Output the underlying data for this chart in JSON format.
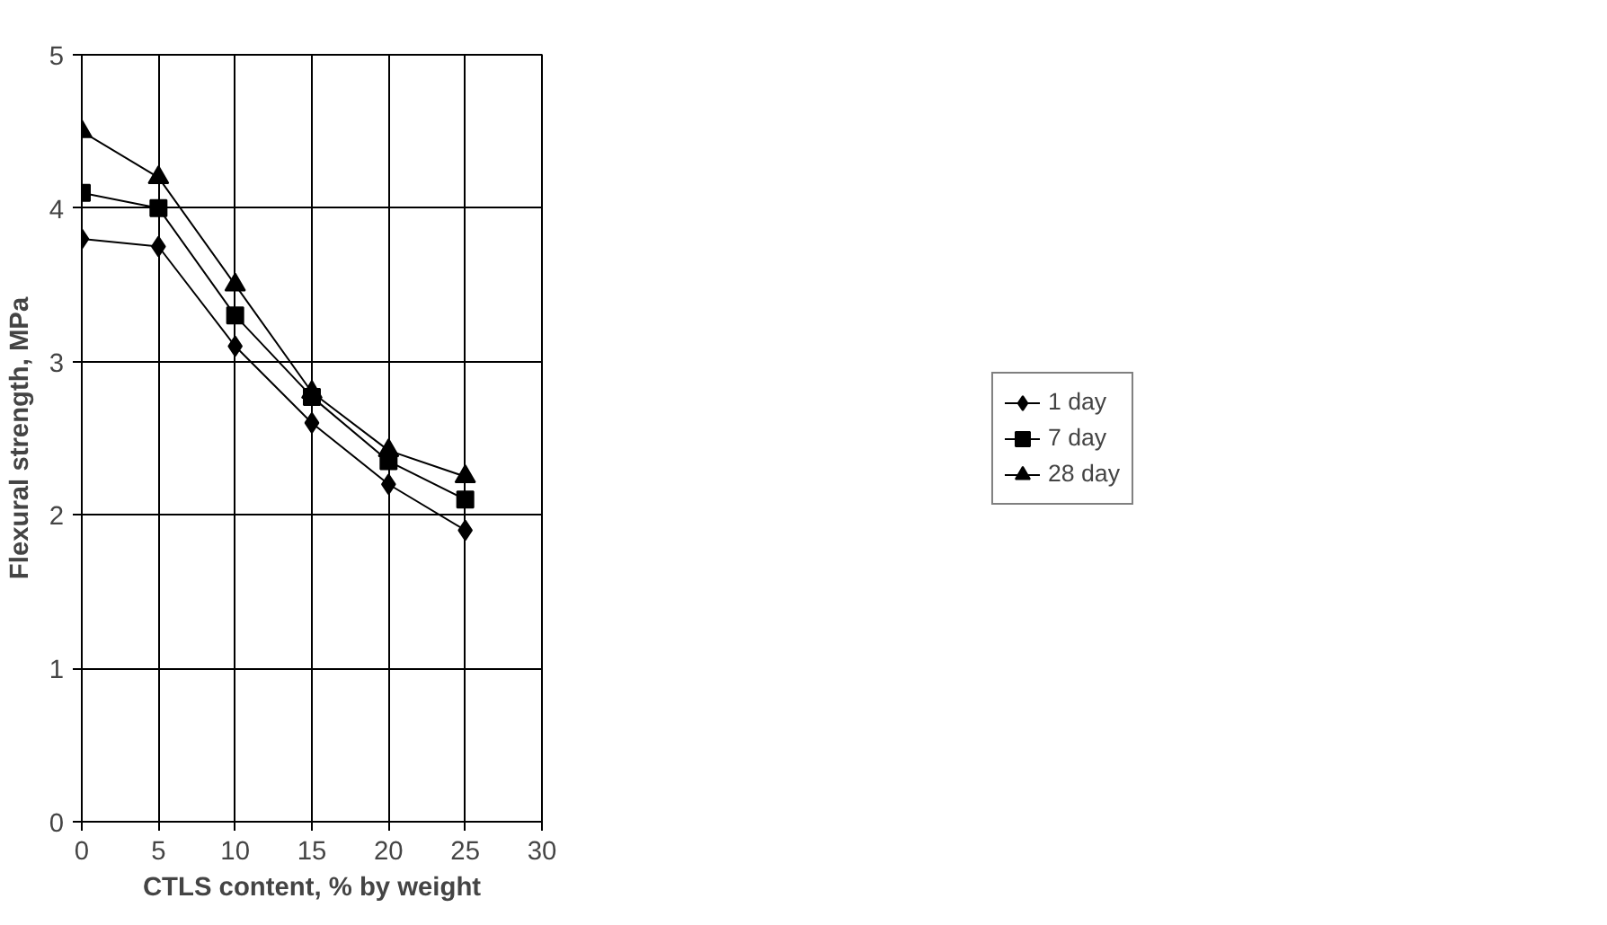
{
  "chart_data": {
    "type": "line",
    "xlabel": "CTLS content, % by weight",
    "ylabel": "Flexural strength, MPa",
    "x": [
      0,
      5,
      10,
      15,
      20,
      25
    ],
    "series": [
      {
        "name": "1 day",
        "color": "#000000",
        "marker": "diamond",
        "values": [
          3.8,
          3.75,
          3.1,
          2.6,
          2.2,
          1.9
        ]
      },
      {
        "name": "7 day",
        "color": "#000000",
        "marker": "square",
        "values": [
          4.1,
          4.0,
          3.3,
          2.77,
          2.35,
          2.1
        ]
      },
      {
        "name": "28 day",
        "color": "#000000",
        "marker": "triangle",
        "values": [
          4.5,
          4.2,
          3.5,
          2.8,
          2.42,
          2.25
        ]
      }
    ],
    "xlim": [
      0,
      30
    ],
    "xticks": [
      0,
      5,
      10,
      15,
      20,
      25,
      30
    ],
    "ylim": [
      0,
      5
    ],
    "yticks": [
      0,
      1,
      2,
      3,
      4,
      5
    ],
    "grid": true,
    "legend": "right",
    "line_style": "solid"
  }
}
